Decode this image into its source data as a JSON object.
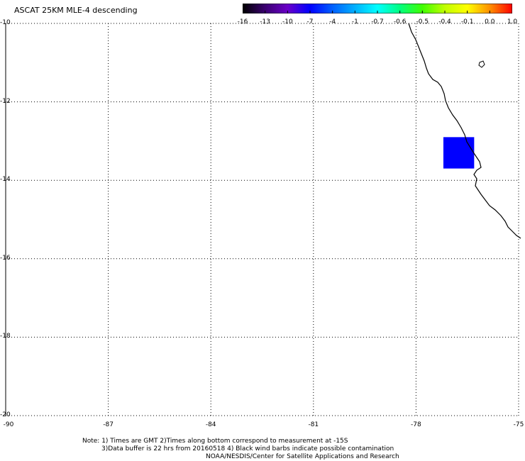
{
  "title": "ASCAT 25KM MLE-4 descending",
  "colorbar": {
    "labels": [
      "-16",
      "-13",
      "-10",
      "-7",
      "-4",
      "-1",
      "-0.7",
      "-0.6",
      "-0.5",
      "-0.4",
      "-0.1",
      "0.0",
      "1.0"
    ],
    "colors": [
      "#000000",
      "#3a0070",
      "#6a00c8",
      "#0000ff",
      "#0060ff",
      "#00b0ff",
      "#00ffff",
      "#00ff80",
      "#40ff00",
      "#c0ff00",
      "#ffff00",
      "#ff9000",
      "#ff0000"
    ]
  },
  "axes": {
    "y_labels": [
      "-10",
      "-12",
      "-14",
      "-16",
      "-18",
      "-20"
    ],
    "x_labels": [
      "-90",
      "-87",
      "-84",
      "-81",
      "-78",
      "-75"
    ],
    "lon_range": [
      -90,
      -75
    ],
    "lat_range": [
      -20,
      -10
    ]
  },
  "data_cell": {
    "lon_range": [
      -77.2,
      -76.3
    ],
    "lat_range": [
      -13.7,
      -12.9
    ],
    "color": "#0000ff"
  },
  "coast_color": "#000000",
  "notes": {
    "line1": "Note: 1) Times are GMT 2)Times along bottom correspond to measurement at -15S",
    "line2": "3)Data buffer is 22 hrs from 20160518 4) Black wind barbs indicate possible contamination",
    "line3": "NOAA/NESDIS/Center for Satellite Applications and Research"
  }
}
